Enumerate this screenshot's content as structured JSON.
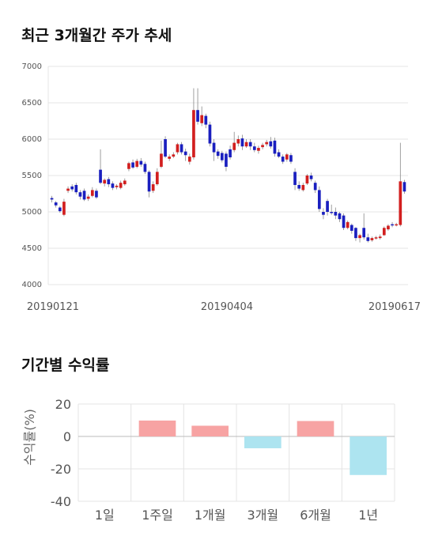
{
  "section1": {
    "title": "최근 3개월간 주가 추세"
  },
  "section2": {
    "title": "기간별 수익률"
  },
  "candle_chart": {
    "type": "candlestick",
    "ylim": [
      4000,
      7000
    ],
    "yticks": [
      "7000",
      "6500",
      "6000",
      "5500",
      "5000",
      "4500",
      "4000"
    ],
    "xticks": [
      "20190121",
      "20190404",
      "20190617"
    ],
    "up_color": "#d21f1f",
    "down_color": "#1a1fbf",
    "candles": [
      [
        5190,
        5170,
        5220,
        5130
      ],
      [
        5130,
        5090,
        5150,
        5060
      ],
      [
        5060,
        5010,
        5080,
        4990
      ],
      [
        4960,
        5140,
        5180,
        4940
      ],
      [
        5290,
        5320,
        5350,
        5260
      ],
      [
        5350,
        5310,
        5380,
        5280
      ],
      [
        5370,
        5270,
        5400,
        5240
      ],
      [
        5270,
        5210,
        5300,
        5170
      ],
      [
        5290,
        5170,
        5320,
        5150
      ],
      [
        5180,
        5210,
        5240,
        5150
      ],
      [
        5220,
        5300,
        5340,
        5200
      ],
      [
        5290,
        5200,
        5320,
        5180
      ],
      [
        5580,
        5400,
        5860,
        5380
      ],
      [
        5390,
        5440,
        5460,
        5350
      ],
      [
        5450,
        5380,
        5480,
        5340
      ],
      [
        5390,
        5330,
        5420,
        5300
      ],
      [
        5340,
        5360,
        5380,
        5310
      ],
      [
        5330,
        5400,
        5430,
        5310
      ],
      [
        5380,
        5430,
        5460,
        5360
      ],
      [
        5590,
        5670,
        5690,
        5560
      ],
      [
        5680,
        5610,
        5720,
        5590
      ],
      [
        5620,
        5700,
        5730,
        5600
      ],
      [
        5700,
        5650,
        5740,
        5620
      ],
      [
        5660,
        5550,
        5690,
        5520
      ],
      [
        5550,
        5280,
        5570,
        5200
      ],
      [
        5290,
        5380,
        5420,
        5260
      ],
      [
        5380,
        5550,
        5600,
        5360
      ],
      [
        5620,
        5800,
        5980,
        5600
      ],
      [
        6000,
        5760,
        6040,
        5740
      ],
      [
        5730,
        5760,
        5790,
        5700
      ],
      [
        5760,
        5790,
        5820,
        5740
      ],
      [
        5820,
        5930,
        5950,
        5790
      ],
      [
        5930,
        5820,
        5960,
        5790
      ],
      [
        5830,
        5780,
        5870,
        5700
      ],
      [
        5690,
        5760,
        5800,
        5650
      ],
      [
        5750,
        6400,
        6700,
        5720
      ],
      [
        6400,
        6240,
        6700,
        6200
      ],
      [
        6220,
        6330,
        6450,
        6180
      ],
      [
        6320,
        6200,
        6350,
        6150
      ],
      [
        6200,
        5940,
        6240,
        5900
      ],
      [
        5950,
        5820,
        6000,
        5700
      ],
      [
        5830,
        5770,
        5860,
        5730
      ],
      [
        5810,
        5710,
        5840,
        5680
      ],
      [
        5800,
        5620,
        5830,
        5560
      ],
      [
        5860,
        5750,
        5910,
        5720
      ],
      [
        5850,
        5950,
        6100,
        5820
      ],
      [
        5940,
        6000,
        6050,
        5900
      ],
      [
        6010,
        5900,
        6060,
        5850
      ],
      [
        5900,
        5960,
        6000,
        5880
      ],
      [
        5960,
        5900,
        6000,
        5850
      ],
      [
        5900,
        5850,
        5950,
        5820
      ],
      [
        5840,
        5880,
        5910,
        5800
      ],
      [
        5890,
        5920,
        5950,
        5860
      ],
      [
        5930,
        5960,
        5990,
        5900
      ],
      [
        5970,
        5900,
        6030,
        5870
      ],
      [
        5980,
        5800,
        6020,
        5760
      ],
      [
        5820,
        5760,
        5860,
        5740
      ],
      [
        5760,
        5690,
        5790,
        5660
      ],
      [
        5720,
        5790,
        5810,
        5690
      ],
      [
        5780,
        5690,
        5810,
        5660
      ],
      [
        5550,
        5370,
        5600,
        5300
      ],
      [
        5370,
        5320,
        5420,
        5290
      ],
      [
        5300,
        5370,
        5400,
        5280
      ],
      [
        5390,
        5500,
        5520,
        5370
      ],
      [
        5500,
        5450,
        5540,
        5420
      ],
      [
        5400,
        5300,
        5430,
        5260
      ],
      [
        5300,
        5040,
        5350,
        5000
      ],
      [
        5000,
        4960,
        5050,
        4900
      ],
      [
        5150,
        5000,
        5180,
        4950
      ],
      [
        5000,
        4990,
        5100,
        4960
      ],
      [
        5000,
        4950,
        5060,
        4900
      ],
      [
        4980,
        4900,
        5000,
        4860
      ],
      [
        4950,
        4780,
        4980,
        4750
      ],
      [
        4780,
        4860,
        4880,
        4760
      ],
      [
        4820,
        4740,
        4840,
        4700
      ],
      [
        4780,
        4640,
        4790,
        4600
      ],
      [
        4640,
        4680,
        4700,
        4580
      ],
      [
        4780,
        4650,
        4980,
        4620
      ],
      [
        4650,
        4600,
        4700,
        4580
      ],
      [
        4610,
        4640,
        4660,
        4590
      ],
      [
        4640,
        4650,
        4670,
        4620
      ],
      [
        4640,
        4660,
        4690,
        4620
      ],
      [
        4680,
        4780,
        4800,
        4670
      ],
      [
        4760,
        4810,
        4830,
        4740
      ],
      [
        4830,
        4820,
        4860,
        4790
      ],
      [
        4830,
        4830,
        4850,
        4800
      ],
      [
        4820,
        5420,
        5950,
        4800
      ],
      [
        5410,
        5280,
        5440,
        5250
      ]
    ]
  },
  "bar_chart": {
    "type": "bar",
    "ylabel": "수익률(%)",
    "ylim": [
      -40,
      20
    ],
    "yticks": [
      "20",
      "0",
      "-20",
      "-40"
    ],
    "categories": [
      "1일",
      "1주일",
      "1개월",
      "3개월",
      "6개월",
      "1년"
    ],
    "values": [
      0,
      9.8,
      6.6,
      -7.3,
      9.5,
      -23.8
    ],
    "positive_color": "#f7a3a3",
    "negative_color": "#ade4f0"
  }
}
